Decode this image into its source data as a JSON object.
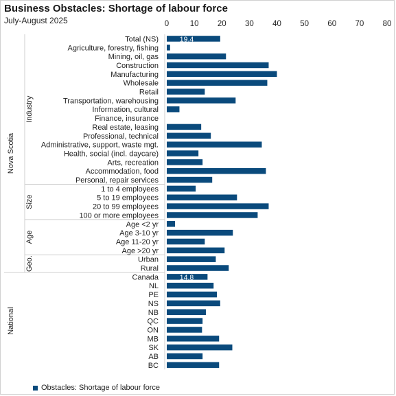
{
  "title": "Business Obstacles: Shortage of labour force",
  "subtitle": "July-August 2025",
  "colors": {
    "bar": "#0a4a7c",
    "axis_text": "#222222",
    "grid": "#d9d9d9",
    "label_text": "#ffffff"
  },
  "chart_data": {
    "type": "bar",
    "orientation": "horizontal",
    "xlim": [
      0,
      80
    ],
    "x_ticks": [
      "0",
      "10",
      "20",
      "30",
      "40",
      "50",
      "60",
      "70",
      "80"
    ],
    "grid": true,
    "legend_position": "bottom-left",
    "series": [
      {
        "name": "Obstacles:  Shortage of labour force",
        "color": "#0a4a7c"
      }
    ],
    "categories": [
      "Total (NS)",
      "Agriculture, forestry, fishing",
      "Mining, oil, gas",
      "Construction",
      "Manufacturing",
      "Wholesale",
      "Retail",
      "Transportation, warehousing",
      "Information, cultural",
      "Finance, insurance",
      "Real estate, leasing",
      "Professional, technical",
      "Administrative, support, waste mgt.",
      "Health, social (incl. daycare)",
      "Arts, recreation",
      "Accommodation, food",
      "Personal, repair services",
      "1 to 4 employees",
      "5 to 19 employees",
      "20 to 99 employees",
      "100 or more employees",
      "Age <2 yr",
      "Age 3-10 yr",
      "Age 11-20 yr",
      "Age >20 yr",
      "Urban",
      "Rural",
      "Canada",
      "NL",
      "PE",
      "NS",
      "NB",
      "QC",
      "ON",
      "MB",
      "SK",
      "AB",
      "BC"
    ],
    "values": [
      19.4,
      1.2,
      21.5,
      37.0,
      40.0,
      36.5,
      13.8,
      25.0,
      4.6,
      null,
      12.5,
      16.0,
      34.5,
      11.5,
      13.0,
      36.0,
      16.5,
      10.5,
      25.5,
      37.0,
      33.0,
      3.0,
      24.0,
      13.8,
      21.0,
      17.8,
      22.5,
      14.8,
      17.0,
      18.2,
      19.4,
      14.2,
      13.0,
      12.8,
      19.0,
      23.8,
      13.0,
      19.0
    ],
    "data_labels": {
      "0": "19.4",
      "27": "14.8"
    },
    "groups": [
      {
        "label": "Industry",
        "start": 0,
        "end": 16
      },
      {
        "label": "Size",
        "start": 17,
        "end": 20
      },
      {
        "label": "Age",
        "start": 21,
        "end": 24
      },
      {
        "label": "Geo.",
        "start": 25,
        "end": 26
      },
      {
        "label": "National",
        "start": 27,
        "end": 37
      }
    ],
    "regions": [
      {
        "label": "Nova Scotia",
        "start": 0,
        "end": 26
      },
      {
        "label": "National",
        "start": 27,
        "end": 37
      }
    ]
  }
}
